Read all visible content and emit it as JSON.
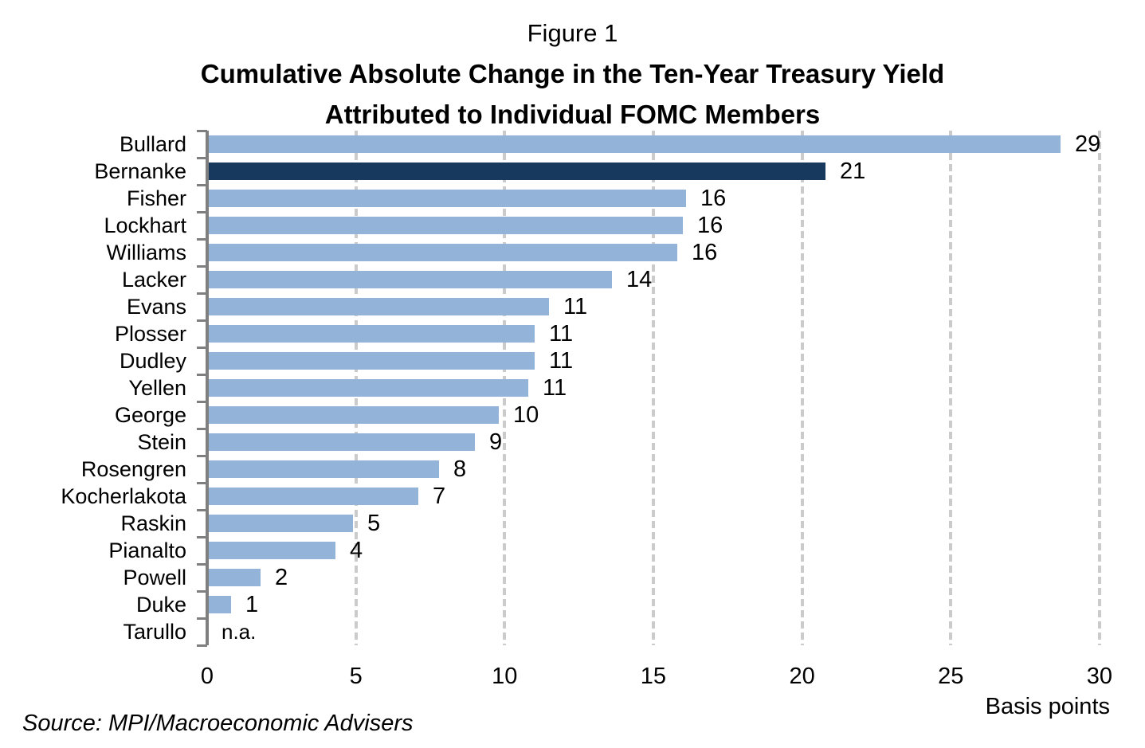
{
  "figure": {
    "label": "Figure 1",
    "title_line1": "Cumulative Absolute Change in the Ten-Year Treasury Yield",
    "title_line2": "Attributed to Individual FOMC Members",
    "source": "Source: MPI/Macroeconomic Advisers",
    "axis_unit_label": "Basis points"
  },
  "chart_data": {
    "type": "bar",
    "orientation": "horizontal",
    "title": "Cumulative Absolute Change in the Ten-Year Treasury Yield Attributed to Individual FOMC Members",
    "xlabel": "Basis points",
    "xlim": [
      0,
      30
    ],
    "x_ticks": [
      0,
      5,
      10,
      15,
      20,
      25,
      30
    ],
    "x_tick_labels": [
      "0",
      "5",
      "10",
      "15",
      "20",
      "25",
      "30"
    ],
    "gridlines": "vertical-dashed",
    "legend": "none",
    "categories": [
      "Bullard",
      "Bernanke",
      "Fisher",
      "Lockhart",
      "Williams",
      "Lacker",
      "Evans",
      "Plosser",
      "Dudley",
      "Yellen",
      "George",
      "Stein",
      "Rosengren",
      "Kocherlakota",
      "Raskin",
      "Pianalto",
      "Powell",
      "Duke",
      "Tarullo"
    ],
    "values": [
      29,
      21,
      16,
      16,
      16,
      14,
      11,
      11,
      11,
      11,
      10,
      9,
      8,
      7,
      5,
      4,
      2,
      1,
      null
    ],
    "value_labels": [
      "29",
      "21",
      "16",
      "16",
      "16",
      "14",
      "11",
      "11",
      "11",
      "11",
      "10",
      "9",
      "8",
      "7",
      "5",
      "4",
      "2",
      "1",
      "n.a."
    ],
    "bar_lengths_bp": [
      28.7,
      20.8,
      16.1,
      16.0,
      15.8,
      13.6,
      11.5,
      11.0,
      11.0,
      10.8,
      9.8,
      9.0,
      7.8,
      7.1,
      4.9,
      4.3,
      1.8,
      0.8,
      0
    ],
    "highlight_category": "Bernanke",
    "colors": {
      "bar": "#94B3D8",
      "bar_highlight": "#17395D",
      "gridline": "#CBCBCB",
      "axis": "#7F7F7F",
      "text": "#000000"
    }
  }
}
